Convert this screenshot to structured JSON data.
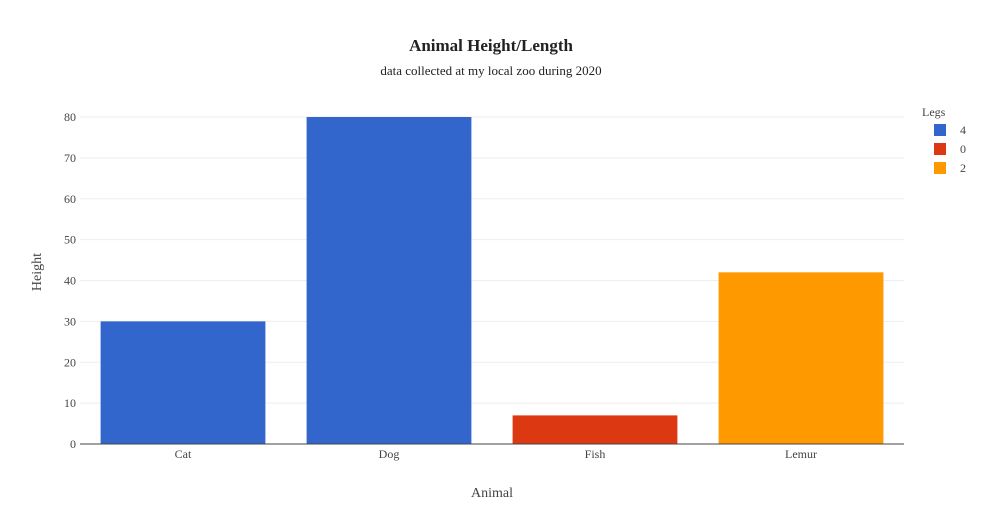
{
  "chart_data": {
    "type": "bar",
    "title": "Animal Height/Length",
    "subtitle": "data collected at my local zoo during 2020",
    "xlabel": "Animal",
    "ylabel": "Height",
    "categories": [
      "Cat",
      "Dog",
      "Fish",
      "Lemur"
    ],
    "values": [
      30,
      80,
      7,
      42
    ],
    "legs": [
      "4",
      "4",
      "0",
      "2"
    ],
    "ylim": [
      0,
      80
    ],
    "yticks": [
      0,
      10,
      20,
      30,
      40,
      50,
      60,
      70,
      80
    ],
    "grid": true,
    "legend": {
      "title": "Legs",
      "placement": "top-right",
      "entries": [
        {
          "label": "4",
          "color": "#3366cc"
        },
        {
          "label": "0",
          "color": "#dc3912"
        },
        {
          "label": "2",
          "color": "#ff9900"
        }
      ]
    },
    "colors": {
      "4": "#3366cc",
      "0": "#dc3912",
      "2": "#ff9900"
    }
  }
}
